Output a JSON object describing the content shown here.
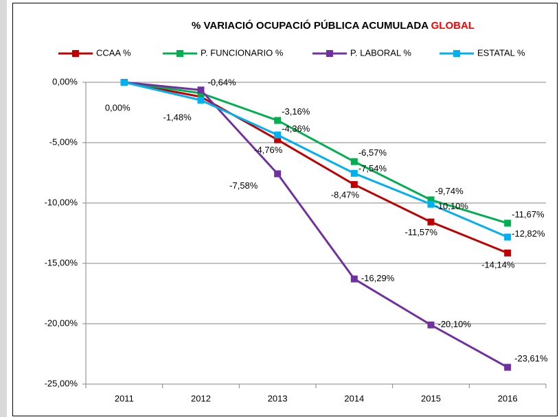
{
  "chart_data": {
    "type": "line",
    "title": "% VARIACIÓ  OCUPACIÓ PÚBLICA ACUMULADA ",
    "title_highlight": "GLOBAL",
    "title_highlight_color": "#ff0000",
    "categories": [
      "2011",
      "2012",
      "2013",
      "2014",
      "2015",
      "2016"
    ],
    "series": [
      {
        "name": "CCAA %",
        "color": "#c00000",
        "values": [
          0,
          -1.2,
          -4.76,
          -8.47,
          -11.57,
          -14.14
        ],
        "value_labels": [
          "0,00%",
          null,
          "-4,76%",
          "-8,47%",
          "-11,57%",
          "-14,14%"
        ]
      },
      {
        "name": "P. FUNCIONARIO %",
        "color": "#00b050",
        "values": [
          0,
          -0.9,
          -3.16,
          -6.57,
          -9.74,
          -11.67
        ],
        "value_labels": [
          null,
          null,
          "-3,16%",
          "-6,57%",
          "-9,74%",
          "-11,67%"
        ]
      },
      {
        "name": "P. LABORAL %",
        "color": "#7030a0",
        "values": [
          0,
          -0.64,
          -7.58,
          -16.29,
          -20.1,
          -23.61
        ],
        "value_labels": [
          null,
          "-0,64%",
          "-7,58%",
          "-16,29%",
          "-20,10%",
          "-23,61%"
        ]
      },
      {
        "name": "ESTATAL %",
        "color": "#00b0f0",
        "values": [
          0,
          -1.48,
          -4.36,
          -7.54,
          -10.1,
          -12.82
        ],
        "value_labels": [
          null,
          "-1,48%",
          "-4,36%",
          "-7,54%",
          "-10,10%",
          "-12,82%"
        ]
      }
    ],
    "ylim": [
      -25,
      0
    ],
    "yticks": [
      {
        "value": 0,
        "label": "0,00%"
      },
      {
        "value": -5,
        "label": "-5,00%"
      },
      {
        "value": -10,
        "label": "-10,00%"
      },
      {
        "value": -15,
        "label": "-15,00%"
      },
      {
        "value": -20,
        "label": "-20,00%"
      },
      {
        "value": -25,
        "label": "-25,00%"
      }
    ],
    "grid": true,
    "legend": "top"
  }
}
